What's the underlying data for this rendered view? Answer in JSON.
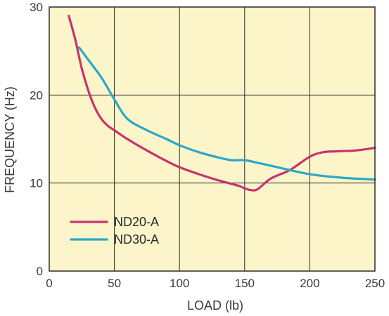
{
  "chart_data": {
    "type": "line",
    "xlabel": "LOAD (lb)",
    "ylabel": "FREQUENCY (Hz)",
    "xlim": [
      0,
      250
    ],
    "ylim": [
      0,
      30
    ],
    "xticks": [
      0,
      50,
      100,
      150,
      200,
      250
    ],
    "yticks": [
      0,
      10,
      20,
      30
    ],
    "grid": true,
    "legend_position": "bottom-left",
    "background_color": "#fbf5c9",
    "series": [
      {
        "name": "ND20-A",
        "color": "#c8336e",
        "x": [
          15,
          20,
          25,
          30,
          35,
          40,
          45,
          50,
          60,
          75,
          90,
          100,
          115,
          130,
          145,
          150,
          155,
          160,
          170,
          185,
          200,
          210,
          220,
          235,
          250
        ],
        "y": [
          29.0,
          26.3,
          23.0,
          20.5,
          18.6,
          17.3,
          16.5,
          16.0,
          15.0,
          13.7,
          12.5,
          11.8,
          11.0,
          10.3,
          9.7,
          9.4,
          9.2,
          9.3,
          10.5,
          11.5,
          13.0,
          13.5,
          13.6,
          13.7,
          14.0
        ]
      },
      {
        "name": "ND30-A",
        "color": "#2ba8c9",
        "x": [
          23,
          30,
          40,
          50,
          60,
          75,
          90,
          100,
          115,
          130,
          140,
          150,
          160,
          175,
          200,
          225,
          250
        ],
        "y": [
          25.4,
          24.0,
          22.0,
          19.5,
          17.3,
          16.0,
          15.0,
          14.3,
          13.5,
          12.9,
          12.6,
          12.6,
          12.3,
          11.8,
          11.0,
          10.6,
          10.4
        ]
      }
    ]
  }
}
